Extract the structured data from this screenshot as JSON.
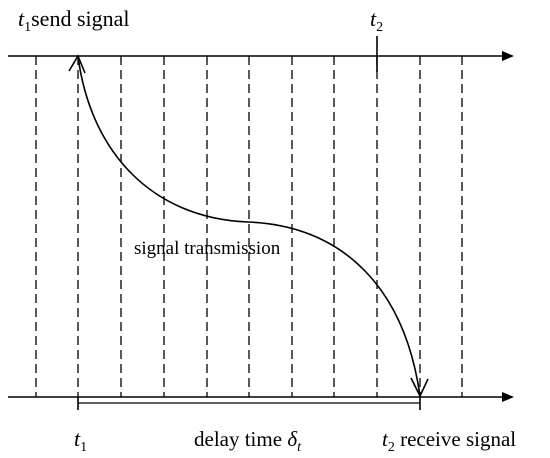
{
  "labels": {
    "top_left_sym": "t",
    "top_left_sub": "1",
    "top_left_text": "send signal",
    "top_right_sym": "t",
    "top_right_sub": "2",
    "curve_label": "signal transmission",
    "bottom_t1_sym": "t",
    "bottom_t1_sub": "1",
    "delay_text": "delay time ",
    "delay_sym": "δ",
    "delay_sub": "t",
    "bottom_right_sym": "t",
    "bottom_right_sub": "2",
    "bottom_right_text": " receive signal"
  },
  "colors": {
    "stroke": "#000000",
    "background": "#ffffff"
  }
}
